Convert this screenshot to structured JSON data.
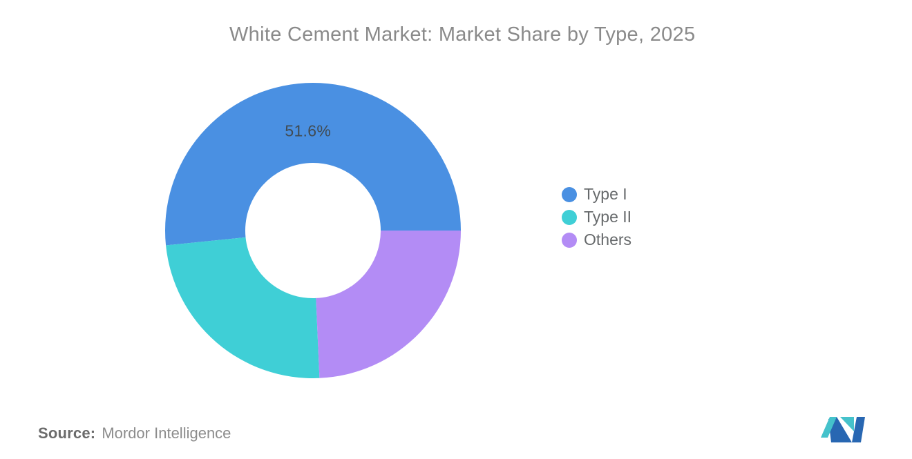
{
  "chart_data": {
    "type": "pie",
    "donut": true,
    "title": "White Cement Market: Market Share by Type, 2025",
    "inner_radius_ratio": 0.46,
    "start_angle_deg": 90,
    "direction": "counterclockwise",
    "legend_position": "right",
    "slices": [
      {
        "label": "Type I",
        "value": 51.6,
        "color": "#4A90E2",
        "data_label": "51.6%"
      },
      {
        "label": "Type II",
        "value": 24.1,
        "color": "#3FCFD6",
        "data_label": ""
      },
      {
        "label": "Others",
        "value": 24.3,
        "color": "#B38CF5",
        "data_label": ""
      }
    ]
  },
  "colors": {
    "title_text": "#8A8A8A",
    "legend_text": "#66696B",
    "data_label_text": "#414B52",
    "logo_teal": "#45C2CB",
    "logo_blue": "#2867B2"
  },
  "source": {
    "label": "Source:",
    "value": "Mordor Intelligence"
  },
  "logo": {
    "name": "mordor-intelligence-logo"
  }
}
